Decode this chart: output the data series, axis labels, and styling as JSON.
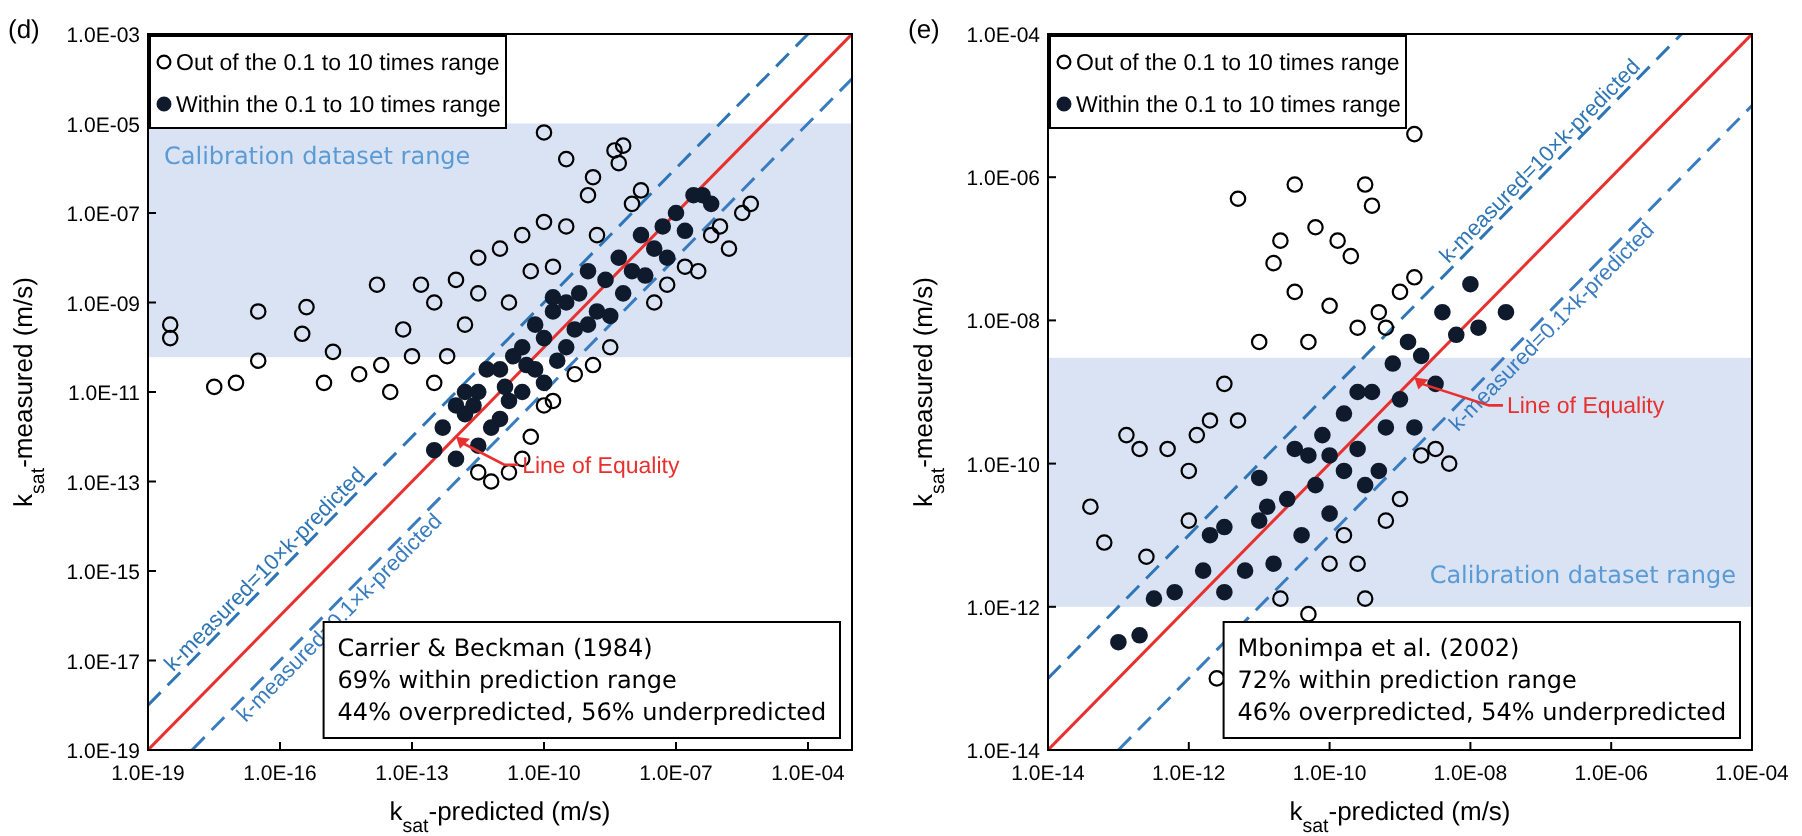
{
  "chart_data": [
    {
      "type": "scatter",
      "title": "(d)",
      "xlabel": "k$_{sat}$-predicted (m/s)",
      "ylabel": "k$_{sat}$-measured (m/s)",
      "log": "xy",
      "legend": "top left",
      "xlim": [
        1e-19,
        0.001
      ],
      "ylim": [
        1e-19,
        0.001
      ],
      "xticks": [
        {
          "value": 1e-19,
          "label": "1.0E-19"
        },
        {
          "value": 1e-16,
          "label": "1.0E-16"
        },
        {
          "value": 1e-13,
          "label": "1.0E-13"
        },
        {
          "value": 1e-10,
          "label": "1.0E-10"
        },
        {
          "value": 1e-07,
          "label": "1.0E-07"
        },
        {
          "value": 0.0001,
          "label": "1.0E-04"
        }
      ],
      "yticks": [
        {
          "value": 1e-19,
          "label": "1.0E-19"
        },
        {
          "value": 1e-17,
          "label": "1.0E-17"
        },
        {
          "value": 1e-15,
          "label": "1.0E-15"
        },
        {
          "value": 1e-13,
          "label": "1.0E-13"
        },
        {
          "value": 1e-11,
          "label": "1.0E-11"
        },
        {
          "value": 1e-09,
          "label": "1.0E-09"
        },
        {
          "value": 1e-07,
          "label": "1.0E-07"
        },
        {
          "value": 1e-05,
          "label": "1.0E-05"
        },
        {
          "value": 0.001,
          "label": "1.0E-03"
        }
      ],
      "bands": [
        {
          "axis": "y",
          "from": 6e-11,
          "to": 1e-05,
          "label": "Calibration dataset range",
          "color": "#dae3f3"
        }
      ],
      "annotations": [
        "Carrier & Beckman (1984)",
        "69% within prediction range",
        "44% overpredicted, 56% underpredicted",
        {
          "text": "Line of Equality",
          "x": 1e-12,
          "y": 1e-12
        }
      ],
      "series": [
        {
          "type": "line",
          "color": "#e8312f",
          "line_style": "solid",
          "x": [
            1e-19,
            0.001
          ],
          "values": [
            1e-19,
            0.001
          ]
        },
        {
          "type": "line",
          "name": "k-measured=10×k-predicted",
          "color": "#2e75b6",
          "line_style": "dashed",
          "x": [
            1e-19,
            0.0001
          ],
          "values": [
            1e-18,
            0.001
          ]
        },
        {
          "type": "line",
          "name": "k-measured=0.1×k-predicted",
          "color": "#3a7cc0",
          "line_style": "dashed",
          "x": [
            1e-18,
            0.001
          ],
          "values": [
            1e-19,
            0.0001
          ]
        },
        {
          "name": "Out of the 0.1 to 10 times range",
          "color": "#000000",
          "marker": "circle",
          "x": [
            3.2e-19,
            3.2e-19,
            3.2e-17,
            3.2e-18,
            1e-17,
            3.2e-17,
            3.2e-16,
            4e-16,
            1.6e-15,
            1e-15,
            6.3e-15,
            2e-14,
            3.2e-14,
            1e-13,
            3.2e-13,
            1.6e-13,
            1e-12,
            3.2e-12,
            1e-11,
            3.2e-11,
            1e-10,
            3.2e-10,
            1e-09,
            3.2e-10,
            1.3e-09,
            6.3e-09,
            5e-09,
            1.6e-08,
            1.6e-11,
            1.6e-12,
            6.3e-13,
            6.3e-14,
            3.2e-13,
            3.2e-12,
            5e-11,
            1.6e-10,
            1.6e-09,
            1e-08,
            1e-06,
            3.2e-06,
            1.6e-06,
            1.6e-07,
            3.2e-08,
            3.2e-09,
            5e-10,
            1e-10,
            5e-11,
            3.2e-11,
            1.6e-11,
            6.3e-12,
            3.2e-12,
            1.6e-10,
            1.3e-09,
            6.3e-08,
            3.2e-07,
            5e-06,
            6.3e-07,
            1.6e-14,
            1e-10,
            4e-09
          ],
          "values": [
            3.2e-10,
            1.6e-10,
            6.3e-10,
            1.3e-11,
            1.6e-11,
            5e-11,
            2e-10,
            7.9e-10,
            7.9e-11,
            1.6e-11,
            2.5e-11,
            4e-11,
            1e-11,
            6.3e-11,
            1e-09,
            2.5e-09,
            3.2e-09,
            1e-08,
            1.6e-08,
            3.2e-08,
            6.3e-08,
            5e-08,
            2.5e-07,
            1.6e-06,
            6.3e-07,
            3.2e-06,
            1.3e-06,
            3.2e-07,
            1e-09,
            3.2e-10,
            6.3e-11,
            2.5e-10,
            1.6e-11,
            1.6e-09,
            5e-09,
            6.3e-09,
            3.2e-08,
            1.6e-07,
            5e-08,
            1e-07,
            1.6e-08,
            6.3e-09,
            1e-09,
            1e-10,
            2.5e-11,
            5e-12,
            1e-12,
            3.2e-13,
            1.6e-13,
            1e-13,
            1.6e-13,
            6.3e-12,
            4e-11,
            2.5e-09,
            5e-09,
            1.6e-07,
            3.2e-08,
            2.5e-09,
            6.3e-06,
            2.5e-06
          ]
        },
        {
          "name": "Within the 0.1 to 10 times range",
          "color": "#0f1b2d",
          "marker": "circle",
          "x": [
            3.2e-13,
            5e-13,
            1e-12,
            1.6e-12,
            3.2e-12,
            3.2e-12,
            6.3e-12,
            1e-11,
            1e-11,
            1.6e-11,
            3.2e-11,
            3.2e-11,
            6.3e-11,
            6.3e-11,
            1e-10,
            1e-10,
            1.6e-10,
            2e-10,
            3.2e-10,
            3.2e-10,
            5e-10,
            6.3e-10,
            1e-09,
            1e-09,
            1.6e-09,
            2.5e-09,
            3.2e-09,
            5e-09,
            6.3e-09,
            1e-08,
            1.6e-08,
            2e-08,
            3.2e-08,
            5e-08,
            6.3e-08,
            1e-07,
            1.6e-07,
            2.5e-07,
            4e-07,
            6.3e-07,
            1.6e-12,
            5e-12,
            1e-12,
            2e-11,
            1.6e-10,
            2.5e-12,
            1.3e-11,
            4e-11
          ],
          "values": [
            5e-13,
            1.6e-12,
            3.2e-13,
            3.2e-12,
            6.3e-13,
            1e-11,
            1.6e-12,
            3.2e-11,
            2.5e-12,
            6.3e-12,
            1e-10,
            1e-11,
            3.2e-11,
            3.2e-10,
            1.6e-11,
            1.6e-10,
            6.3e-10,
            5e-11,
            1e-09,
            1e-10,
            2.5e-10,
            1.6e-09,
            3.2e-10,
            5e-09,
            6.3e-10,
            3.2e-09,
            5e-10,
            1e-08,
            1.6e-09,
            5e-09,
            3.2e-08,
            4e-09,
            1.6e-08,
            5e-08,
            1e-08,
            1e-07,
            4e-08,
            2.5e-07,
            2.5e-07,
            1.6e-07,
            1e-11,
            3.2e-11,
            5e-12,
            6.3e-11,
            1.3e-09,
            5e-12,
            1.3e-11,
            4e-11
          ]
        }
      ]
    },
    {
      "type": "scatter",
      "title": "(e)",
      "xlabel": "k$_{sat}$-predicted (m/s)",
      "ylabel": "k$_{sat}$-measured (m/s)",
      "log": "xy",
      "legend": "top left",
      "xlim": [
        1e-14,
        0.0001
      ],
      "ylim": [
        1e-14,
        0.0001
      ],
      "xticks": [
        {
          "value": 1e-14,
          "label": "1.0E-14"
        },
        {
          "value": 1e-12,
          "label": "1.0E-12"
        },
        {
          "value": 1e-10,
          "label": "1.0E-10"
        },
        {
          "value": 1e-08,
          "label": "1.0E-08"
        },
        {
          "value": 1e-06,
          "label": "1.0E-06"
        },
        {
          "value": 0.0001,
          "label": "1.0E-04"
        }
      ],
      "yticks": [
        {
          "value": 1e-14,
          "label": "1.0E-14"
        },
        {
          "value": 1e-12,
          "label": "1.0E-12"
        },
        {
          "value": 1e-10,
          "label": "1.0E-10"
        },
        {
          "value": 1e-08,
          "label": "1.0E-08"
        },
        {
          "value": 1e-06,
          "label": "1.0E-06"
        },
        {
          "value": 0.0001,
          "label": "1.0E-04"
        }
      ],
      "bands": [
        {
          "axis": "y",
          "from": 1e-12,
          "to": 3e-09,
          "label": "Calibration dataset range",
          "color": "#dae3f3"
        }
      ],
      "annotations": [
        "Mbonimpa et al. (2002)",
        "72% within prediction range",
        "46% overpredicted, 54% underpredicted",
        {
          "text": "Line of Equality",
          "x": 1.6e-09,
          "y": 1.6e-09
        }
      ],
      "series": [
        {
          "type": "line",
          "color": "#e8312f",
          "line_style": "solid",
          "x": [
            1e-14,
            0.0001
          ],
          "values": [
            1e-14,
            0.0001
          ]
        },
        {
          "type": "line",
          "name": "k-measured=10×k-predicted",
          "color": "#2e75b6",
          "line_style": "dashed",
          "x": [
            1e-14,
            1e-05
          ],
          "values": [
            1e-13,
            0.0001
          ]
        },
        {
          "type": "line",
          "name": "k-measured=0.1×k-predicted",
          "color": "#3a7cc0",
          "line_style": "dashed",
          "x": [
            1e-13,
            0.0001
          ],
          "values": [
            1e-14,
            1e-05
          ]
        },
        {
          "name": "Out of the 0.1 to 10 times range",
          "color": "#000000",
          "marker": "circle",
          "x": [
            4e-14,
            2.5e-13,
            1.3e-13,
            5e-13,
            1e-12,
            2e-12,
            3.2e-12,
            1e-11,
            1.6e-11,
            2e-11,
            3.2e-11,
            5e-11,
            6.3e-11,
            1e-10,
            2e-10,
            3.2e-10,
            4e-10,
            2.5e-10,
            5e-10,
            6.3e-10,
            1e-09,
            1.6e-09,
            1.6e-09,
            5e-12,
            3.2e-11,
            1.3e-10,
            5e-12,
            2e-13,
            6.3e-14,
            1e-12,
            1.3e-12,
            5e-09,
            3.2e-09,
            1e-09,
            6.3e-10,
            2.5e-10,
            1e-10,
            5e-11,
            2e-11,
            3.2e-10,
            2.5e-12,
            2e-09,
            1.6e-10
          ],
          "values": [
            2.5e-11,
            5e-12,
            2.5e-10,
            1.6e-10,
            7.9e-11,
            4e-10,
            1.3e-09,
            5e-09,
            6.3e-08,
            1.3e-07,
            2.5e-08,
            5e-09,
            2e-07,
            1.6e-08,
            7.9e-08,
            7.9e-07,
            4e-07,
            7.9e-09,
            1.3e-08,
            7.9e-09,
            2.5e-08,
            4e-08,
            4e-06,
            5e-07,
            7.9e-07,
            1.3e-07,
            4e-10,
            1.6e-10,
            7.9e-12,
            1.6e-11,
            2.5e-10,
            1e-10,
            1.6e-10,
            3.2e-11,
            1.6e-11,
            4e-12,
            4e-12,
            7.9e-13,
            1.3e-12,
            1.3e-12,
            1e-13,
            1.3e-10,
            1e-11
          ]
        },
        {
          "name": "Within the 0.1 to 10 times range",
          "color": "#0f1b2d",
          "marker": "circle",
          "x": [
            1e-13,
            2e-13,
            6.3e-13,
            1.6e-12,
            3.2e-12,
            3.2e-12,
            6.3e-12,
            1e-11,
            1e-11,
            1.6e-11,
            2.5e-11,
            3.2e-11,
            4e-11,
            6.3e-11,
            7.9e-11,
            1e-10,
            1e-10,
            1.6e-10,
            1.6e-10,
            2.5e-10,
            3.2e-10,
            4e-10,
            6.3e-10,
            7.9e-10,
            1e-09,
            1.3e-09,
            2e-09,
            3.2e-09,
            4e-09,
            6.3e-09,
            1e-08,
            1.3e-08,
            3.2e-08,
            2.5e-10,
            5e-11,
            3.2e-13,
            2e-12,
            1.3e-11,
            5e-10,
            1.6e-09
          ],
          "values": [
            3.2e-13,
            4e-13,
            1.6e-12,
            3.2e-12,
            1.6e-12,
            1.3e-11,
            3.2e-12,
            1.6e-11,
            6.3e-11,
            4e-12,
            3.2e-11,
            1.6e-10,
            1e-11,
            5e-11,
            2.5e-10,
            2e-11,
            1.3e-10,
            7.9e-11,
            5e-10,
            1.6e-10,
            5e-11,
            1e-09,
            3.2e-10,
            2.5e-09,
            7.9e-10,
            5e-09,
            3.2e-09,
            1.3e-09,
            1.3e-08,
            6.3e-09,
            3.2e-08,
            7.9e-09,
            1.3e-08,
            1e-09,
            1.3e-10,
            1.3e-12,
            1e-11,
            2.5e-11,
            7.9e-11,
            3.2e-10
          ]
        }
      ]
    }
  ]
}
